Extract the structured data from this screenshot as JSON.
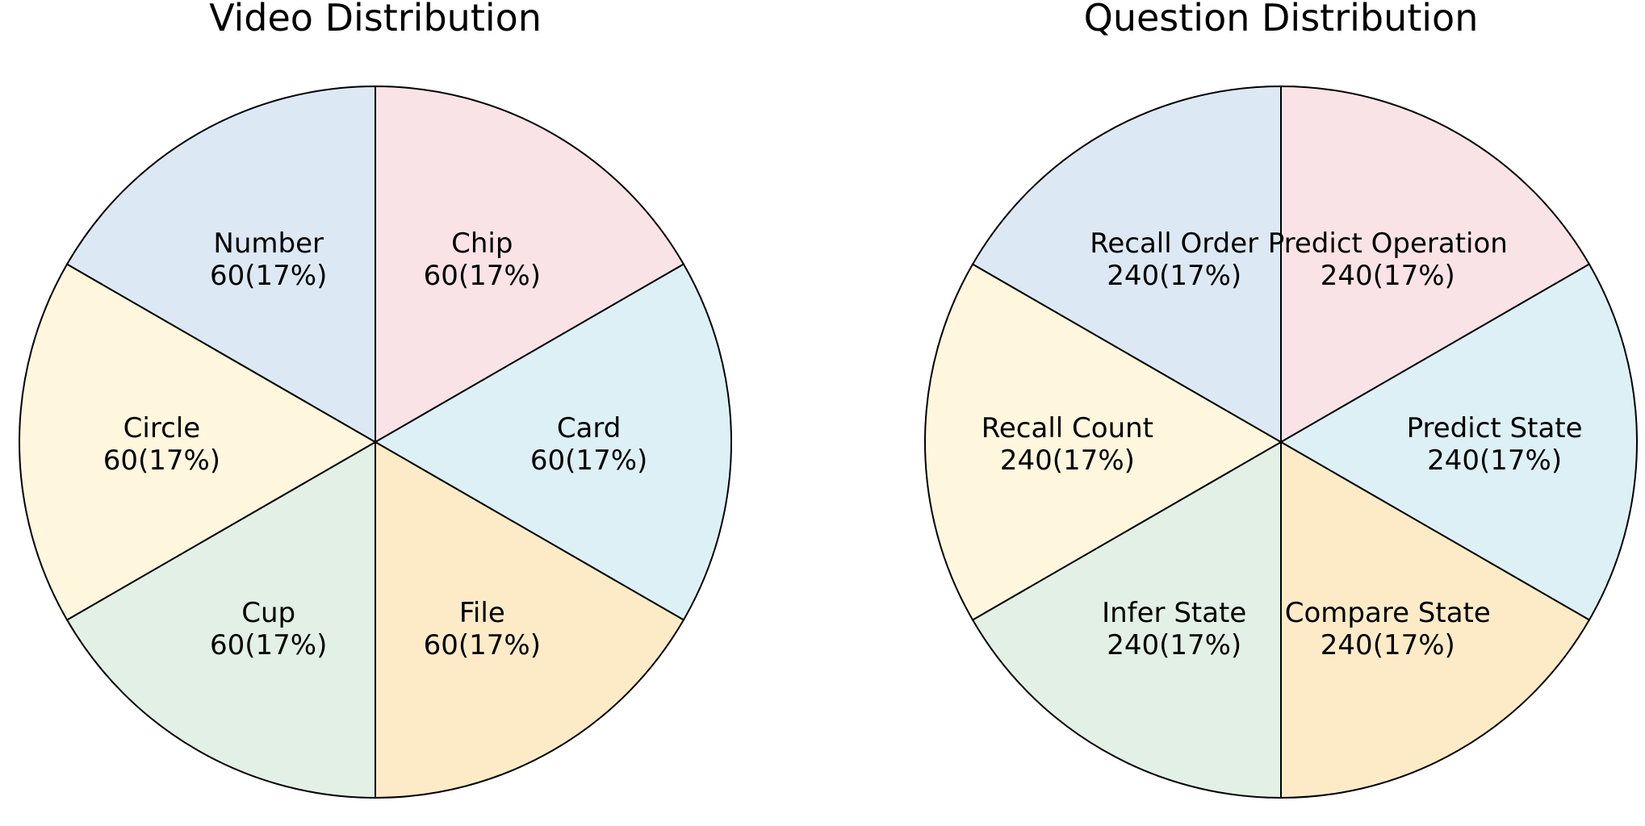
{
  "chart_data": [
    {
      "type": "pie",
      "title": "Video Distribution",
      "slices": [
        {
          "label": "Chip",
          "value": 60,
          "value_text": "60(17%)",
          "color": "#f9e3e6"
        },
        {
          "label": "Card",
          "value": 60,
          "value_text": "60(17%)",
          "color": "#ddf0f5"
        },
        {
          "label": "File",
          "value": 60,
          "value_text": "60(17%)",
          "color": "#fdebc8"
        },
        {
          "label": "Cup",
          "value": 60,
          "value_text": "60(17%)",
          "color": "#e3f0e5"
        },
        {
          "label": "Circle",
          "value": 60,
          "value_text": "60(17%)",
          "color": "#fef6dd"
        },
        {
          "label": "Number",
          "value": 60,
          "value_text": "60(17%)",
          "color": "#dce9f5"
        }
      ],
      "start_angle": "top",
      "direction": "clockwise"
    },
    {
      "type": "pie",
      "title": "Question Distribution",
      "slices": [
        {
          "label": "Predict Operation",
          "value": 240,
          "value_text": "240(17%)",
          "color": "#f9e3e6"
        },
        {
          "label": "Predict State",
          "value": 240,
          "value_text": "240(17%)",
          "color": "#ddf0f5"
        },
        {
          "label": "Compare State",
          "value": 240,
          "value_text": "240(17%)",
          "color": "#fdebc8"
        },
        {
          "label": "Infer State",
          "value": 240,
          "value_text": "240(17%)",
          "color": "#e3f0e5"
        },
        {
          "label": "Recall Count",
          "value": 240,
          "value_text": "240(17%)",
          "color": "#fef6dd"
        },
        {
          "label": "Recall Order",
          "value": 240,
          "value_text": "240(17%)",
          "color": "#dce9f5"
        }
      ],
      "start_angle": "top",
      "direction": "clockwise"
    }
  ]
}
